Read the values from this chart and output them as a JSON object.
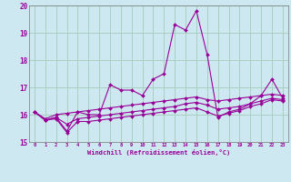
{
  "xlabel": "Windchill (Refroidissement éolien,°C)",
  "background_color": "#cde8f0",
  "grid_color": "#a8cfc0",
  "line_color": "#990099",
  "xlim": [
    -0.5,
    23.5
  ],
  "ylim": [
    15,
    20
  ],
  "yticks": [
    15,
    16,
    17,
    18,
    19,
    20
  ],
  "xticks": [
    0,
    1,
    2,
    3,
    4,
    5,
    6,
    7,
    8,
    9,
    10,
    11,
    12,
    13,
    14,
    15,
    16,
    17,
    18,
    19,
    20,
    21,
    22,
    23
  ],
  "series": [
    {
      "x": [
        0,
        1,
        2,
        3,
        4,
        5,
        6,
        7,
        8,
        9,
        10,
        11,
        12,
        13,
        14,
        15,
        16,
        17,
        18,
        19,
        20,
        21,
        22,
        23
      ],
      "y": [
        16.1,
        15.8,
        15.9,
        15.4,
        16.1,
        16.0,
        16.0,
        17.1,
        16.9,
        16.9,
        16.7,
        17.3,
        17.5,
        19.3,
        19.1,
        19.8,
        18.2,
        15.9,
        16.1,
        16.2,
        16.4,
        16.7,
        17.3,
        16.6
      ]
    },
    {
      "x": [
        0,
        1,
        2,
        3,
        4,
        5,
        6,
        7,
        8,
        9,
        10,
        11,
        12,
        13,
        14,
        15,
        16,
        17,
        18,
        19,
        20,
        21,
        22,
        23
      ],
      "y": [
        16.1,
        15.85,
        16.0,
        16.05,
        16.1,
        16.15,
        16.2,
        16.25,
        16.3,
        16.35,
        16.4,
        16.45,
        16.5,
        16.55,
        16.6,
        16.65,
        16.55,
        16.5,
        16.55,
        16.6,
        16.65,
        16.7,
        16.75,
        16.7
      ]
    },
    {
      "x": [
        0,
        1,
        2,
        3,
        4,
        5,
        6,
        7,
        8,
        9,
        10,
        11,
        12,
        13,
        14,
        15,
        16,
        17,
        18,
        19,
        20,
        21,
        22,
        23
      ],
      "y": [
        16.1,
        15.8,
        15.9,
        15.65,
        15.85,
        15.9,
        15.95,
        16.0,
        16.05,
        16.1,
        16.15,
        16.2,
        16.25,
        16.3,
        16.4,
        16.45,
        16.35,
        16.2,
        16.25,
        16.3,
        16.4,
        16.5,
        16.6,
        16.55
      ]
    },
    {
      "x": [
        0,
        1,
        2,
        3,
        4,
        5,
        6,
        7,
        8,
        9,
        10,
        11,
        12,
        13,
        14,
        15,
        16,
        17,
        18,
        19,
        20,
        21,
        22,
        23
      ],
      "y": [
        16.1,
        15.8,
        15.85,
        15.35,
        15.75,
        15.75,
        15.8,
        15.85,
        15.9,
        15.95,
        16.0,
        16.05,
        16.1,
        16.15,
        16.2,
        16.25,
        16.1,
        15.95,
        16.05,
        16.15,
        16.3,
        16.4,
        16.55,
        16.5
      ]
    }
  ]
}
